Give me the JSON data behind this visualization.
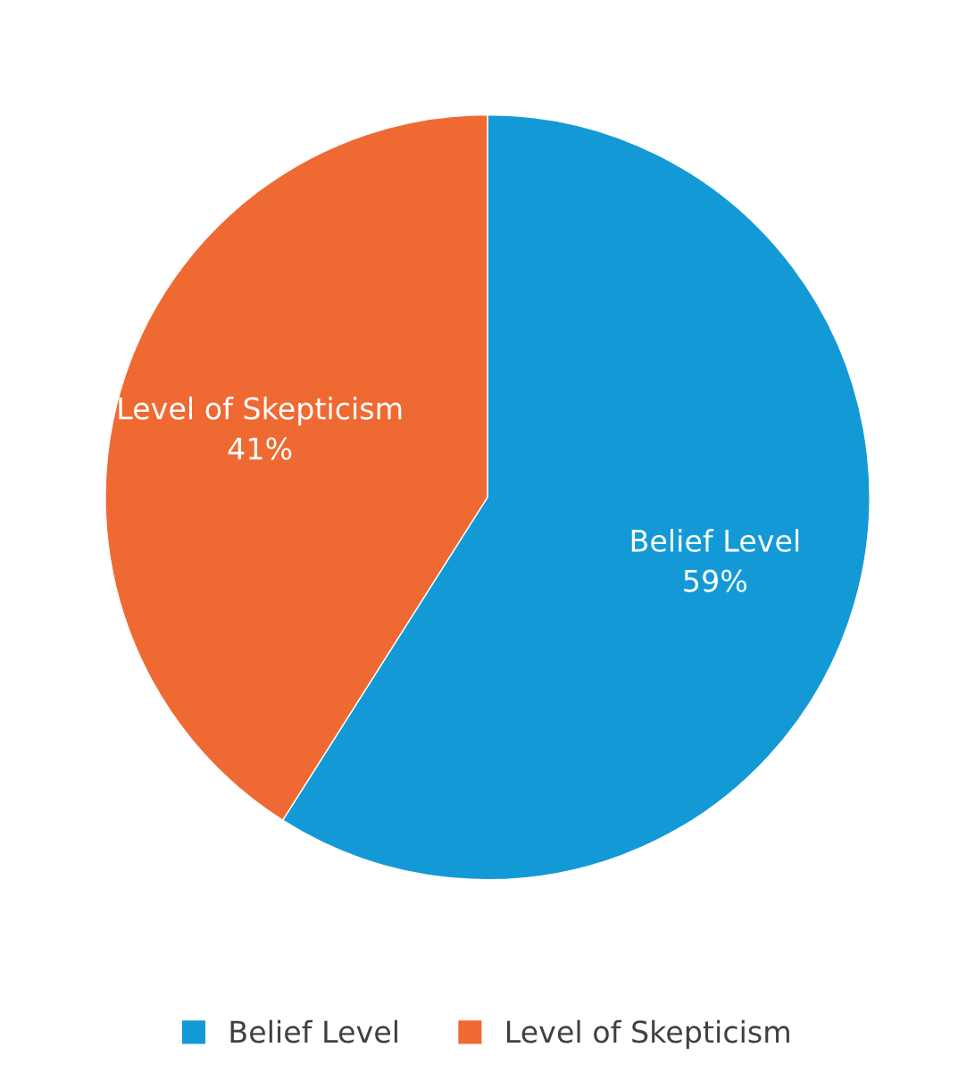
{
  "chart_data": {
    "type": "pie",
    "categories": [
      "Belief Level",
      "Level of Skepticism"
    ],
    "values": [
      59,
      41
    ],
    "colors": [
      "#139ad6",
      "#ef6a33"
    ],
    "value_labels": [
      "59%",
      "41%"
    ],
    "legend": "bottom"
  }
}
